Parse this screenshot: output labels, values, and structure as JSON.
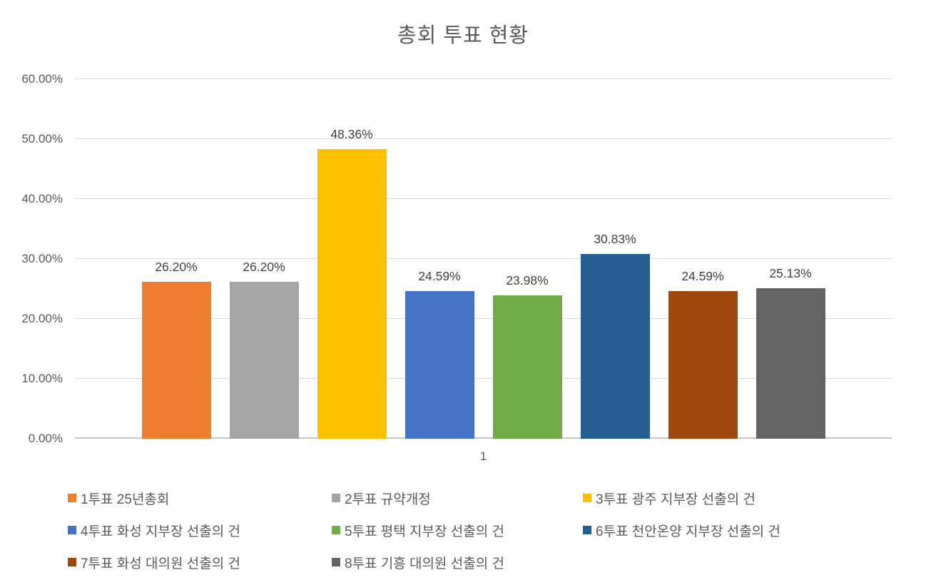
{
  "chart_data": {
    "type": "bar",
    "title": "총회 투표 현황",
    "categories": [
      "1"
    ],
    "series": [
      {
        "name": "1투표 25년총회",
        "value": 26.2,
        "label": "26.20%",
        "color": "#ED7D31"
      },
      {
        "name": "2투표 규약개정",
        "value": 26.2,
        "label": "26.20%",
        "color": "#A5A5A5"
      },
      {
        "name": "3투표 광주 지부장 선출의 건",
        "value": 48.36,
        "label": "48.36%",
        "color": "#FFC000"
      },
      {
        "name": "4투표 화성 지부장 선출의 건",
        "value": 24.59,
        "label": "24.59%",
        "color": "#4472C4"
      },
      {
        "name": "5투표 평택 지부장 선출의 건",
        "value": 23.98,
        "label": "23.98%",
        "color": "#70AD47"
      },
      {
        "name": "6투표 천안온양 지부장 선출의 건",
        "value": 30.83,
        "label": "30.83%",
        "color": "#255E91"
      },
      {
        "name": "7투표 화성 대의원 선출의 건",
        "value": 24.59,
        "label": "24.59%",
        "color": "#9E480E"
      },
      {
        "name": "8투표 기흥 대의원 선출의 건",
        "value": 25.13,
        "label": "25.13%",
        "color": "#636363"
      }
    ],
    "xlabel": "",
    "ylabel": "",
    "ylim": [
      0,
      60
    ],
    "yticks": [
      {
        "value": 0,
        "label": "0.00%"
      },
      {
        "value": 10,
        "label": "10.00%"
      },
      {
        "value": 20,
        "label": "20.00%"
      },
      {
        "value": 30,
        "label": "30.00%"
      },
      {
        "value": 40,
        "label": "40.00%"
      },
      {
        "value": 50,
        "label": "50.00%"
      },
      {
        "value": 60,
        "label": "60.00%"
      }
    ],
    "grid": true,
    "legend_position": "bottom",
    "colors": {
      "title_text": "#595959",
      "axis_text": "#595959",
      "data_label_text": "#404040",
      "legend_text": "#595959",
      "gridline": "#D9D9D9",
      "axis_line": "#C6C6C6",
      "background": "#FFFFFF"
    }
  }
}
